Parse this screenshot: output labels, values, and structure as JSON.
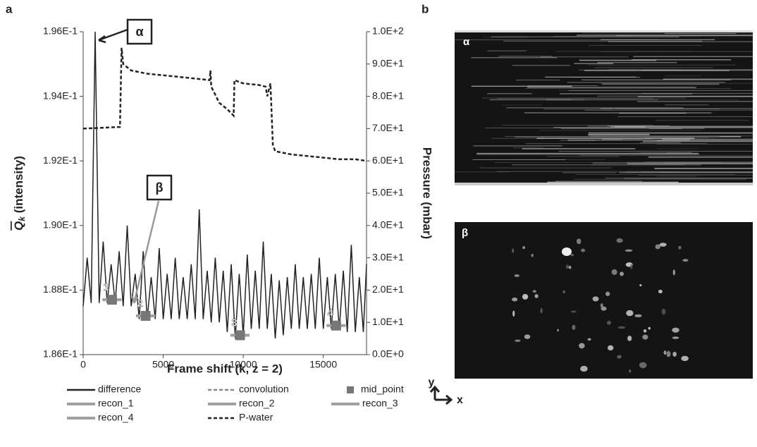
{
  "chart_data": {
    "type": "line",
    "panel_label": "a",
    "x_label": "Frame shift (k, z = 2)",
    "y_label": {
      "symbol": "Q",
      "subscript": "k",
      "text": " (intensity)"
    },
    "y2_label": "Pressure (mbar)",
    "annotations": [
      "α",
      "β"
    ],
    "xlim": [
      0,
      17700
    ],
    "xticks": [
      0,
      5000,
      10000,
      15000
    ],
    "ylim": [
      0.186,
      0.196
    ],
    "yticks": [
      {
        "value": 0.186,
        "label": "1.86E-1"
      },
      {
        "value": 0.188,
        "label": "1.88E-1"
      },
      {
        "value": 0.19,
        "label": "1.90E-1"
      },
      {
        "value": 0.192,
        "label": "1.92E-1"
      },
      {
        "value": 0.194,
        "label": "1.94E-1"
      },
      {
        "value": 0.196,
        "label": "1.96E-1"
      }
    ],
    "y2lim": [
      0,
      100
    ],
    "y2ticks": [
      {
        "value": 0,
        "label": "0.0E+0"
      },
      {
        "value": 10,
        "label": "1.0E+1"
      },
      {
        "value": 20,
        "label": "2.0E+1"
      },
      {
        "value": 30,
        "label": "3.0E+1"
      },
      {
        "value": 40,
        "label": "4.0E+1"
      },
      {
        "value": 50,
        "label": "5.0E+1"
      },
      {
        "value": 60,
        "label": "6.0E+1"
      },
      {
        "value": 70,
        "label": "7.0E+1"
      },
      {
        "value": 80,
        "label": "8.0E+1"
      },
      {
        "value": 90,
        "label": "9.0E+1"
      },
      {
        "value": 100,
        "label": "1.0E+2"
      }
    ],
    "grid": false,
    "series": [
      {
        "name": "difference",
        "color": "#222222",
        "style": "line",
        "x": [
          0,
          250,
          500,
          750,
          1000,
          1250,
          1500,
          1750,
          2000,
          2250,
          2500,
          2750,
          3000,
          3250,
          3500,
          3750,
          4000,
          4250,
          4500,
          4750,
          5000,
          5250,
          5500,
          5750,
          6000,
          6250,
          6500,
          6750,
          7000,
          7250,
          7500,
          7750,
          8000,
          8250,
          8500,
          8750,
          9000,
          9250,
          9500,
          9750,
          10000,
          10250,
          10500,
          10750,
          11000,
          11250,
          11500,
          11750,
          12000,
          12250,
          12500,
          12750,
          13000,
          13250,
          13500,
          13750,
          14000,
          14250,
          14500,
          14750,
          15000,
          15250,
          15500,
          15750,
          16000,
          16250,
          16500,
          16750,
          17000,
          17250,
          17500,
          17700
        ],
        "values": [
          0.1875,
          0.189,
          0.1876,
          0.196,
          0.1876,
          0.1895,
          0.1876,
          0.1888,
          0.1876,
          0.1892,
          0.1875,
          0.19,
          0.1875,
          0.1885,
          0.1871,
          0.1892,
          0.1871,
          0.1884,
          0.1871,
          0.1893,
          0.1871,
          0.1885,
          0.1871,
          0.189,
          0.1871,
          0.1884,
          0.1871,
          0.1888,
          0.1871,
          0.1905,
          0.1871,
          0.1886,
          0.187,
          0.189,
          0.187,
          0.1886,
          0.1867,
          0.1888,
          0.1865,
          0.1885,
          0.1866,
          0.1891,
          0.1868,
          0.1886,
          0.1868,
          0.1895,
          0.1868,
          0.1885,
          0.1865,
          0.1883,
          0.1866,
          0.1884,
          0.1868,
          0.1888,
          0.1868,
          0.1884,
          0.1868,
          0.1885,
          0.1868,
          0.189,
          0.1868,
          0.1884,
          0.1868,
          0.1885,
          0.1868,
          0.1886,
          0.1867,
          0.1894,
          0.1867,
          0.1884,
          0.1867,
          0.1888
        ]
      },
      {
        "name": "convolution",
        "color": "#888888",
        "style": "dashed",
        "x": [],
        "values": []
      },
      {
        "name": "mid_point",
        "color": "#777777",
        "style": "marker",
        "x": [
          1800,
          3900,
          9800,
          15800
        ],
        "values": [
          0.1877,
          0.1872,
          0.1866,
          0.1869
        ],
        "point_labels": [
          "1",
          "2",
          "3",
          "4"
        ]
      },
      {
        "name": "recon_1",
        "color": "#a0a0a0",
        "style": "thick",
        "x": [
          1200,
          2400
        ],
        "values": [
          0.1877,
          0.1877
        ]
      },
      {
        "name": "recon_2",
        "color": "#a0a0a0",
        "style": "thick",
        "x": [
          3300,
          4500
        ],
        "values": [
          0.1872,
          0.1872
        ]
      },
      {
        "name": "recon_3",
        "color": "#a0a0a0",
        "style": "thick",
        "x": [
          9200,
          10400
        ],
        "values": [
          0.1866,
          0.1866
        ]
      },
      {
        "name": "recon_4",
        "color": "#a0a0a0",
        "style": "thick",
        "x": [
          15200,
          16400
        ],
        "values": [
          0.1869,
          0.1869
        ]
      },
      {
        "name": "P-water",
        "color": "#222222",
        "style": "dashed",
        "axis": "y2",
        "x": [
          0,
          2300,
          2400,
          2500,
          3000,
          4000,
          5000,
          6000,
          7000,
          7900,
          7950,
          8000,
          8500,
          9000,
          9400,
          9450,
          10000,
          11000,
          11400,
          11500,
          11700,
          11850,
          12000,
          13000,
          14000,
          15000,
          16000,
          17000,
          17700
        ],
        "values": [
          70,
          70.5,
          95,
          90,
          88,
          87,
          86.5,
          86,
          85.5,
          85,
          88,
          83,
          78,
          76,
          74,
          85,
          84,
          83.5,
          83,
          80,
          84,
          65,
          63,
          62,
          61.5,
          61,
          60.5,
          60.5,
          60
        ]
      }
    ]
  },
  "images": {
    "panel_label": "b",
    "labels": [
      "α",
      "β"
    ],
    "axis_y": "y",
    "axis_x": "x"
  }
}
